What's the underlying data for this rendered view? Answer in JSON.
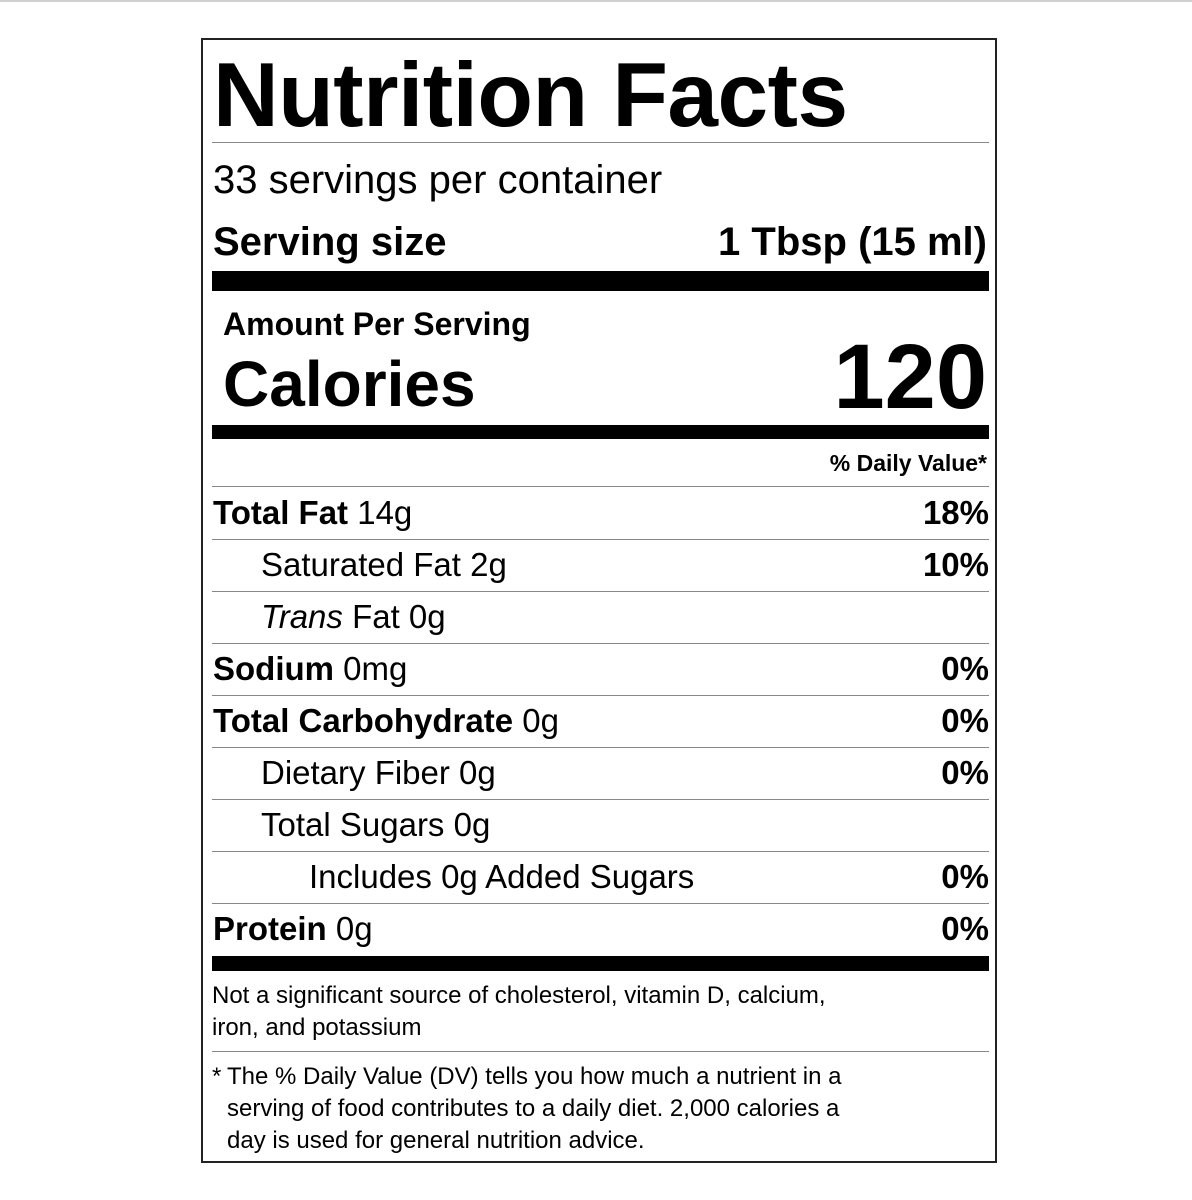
{
  "title": "Nutrition Facts",
  "servings_per_container": "33 servings per container",
  "serving_size": {
    "label": "Serving size",
    "value": "1 Tbsp (15 ml)"
  },
  "amount_per_serving": "Amount Per Serving",
  "calories": {
    "label": "Calories",
    "value": "120"
  },
  "daily_value_header": "% Daily Value*",
  "nutrients": [
    {
      "name": "Total Fat",
      "amount": " 14g",
      "dv": "18%",
      "indent": 0,
      "bold": true
    },
    {
      "name": "Saturated Fat",
      "amount": " 2g",
      "dv": "10%",
      "indent": 1,
      "bold": false
    },
    {
      "name": "Trans",
      "amount": " Fat 0g",
      "dv": "",
      "indent": 1,
      "bold": false,
      "italic": true
    },
    {
      "name": "Sodium",
      "amount": " 0mg",
      "dv": "0%",
      "indent": 0,
      "bold": true
    },
    {
      "name": "Total Carbohydrate",
      "amount": " 0g",
      "dv": "0%",
      "indent": 0,
      "bold": true
    },
    {
      "name": "Dietary Fiber",
      "amount": " 0g",
      "dv": "0%",
      "indent": 1,
      "bold": false
    },
    {
      "name": "Total Sugars",
      "amount": " 0g",
      "dv": "",
      "indent": 1,
      "bold": false
    },
    {
      "name": "Includes 0g Added Sugars",
      "amount": "",
      "dv": "0%",
      "indent": 2,
      "bold": false
    },
    {
      "name": "Protein",
      "amount": " 0g",
      "dv": "0%",
      "indent": 0,
      "bold": true
    }
  ],
  "not_significant": [
    "Not a significant source of cholesterol, vitamin D, calcium,",
    "iron, and potassium"
  ],
  "footnote": {
    "asterisk": "*",
    "lines": [
      "The % Daily Value (DV) tells you how much a nutrient in a",
      "serving of food contributes to a daily diet. 2,000 calories a",
      "day is used for general nutrition advice."
    ]
  }
}
